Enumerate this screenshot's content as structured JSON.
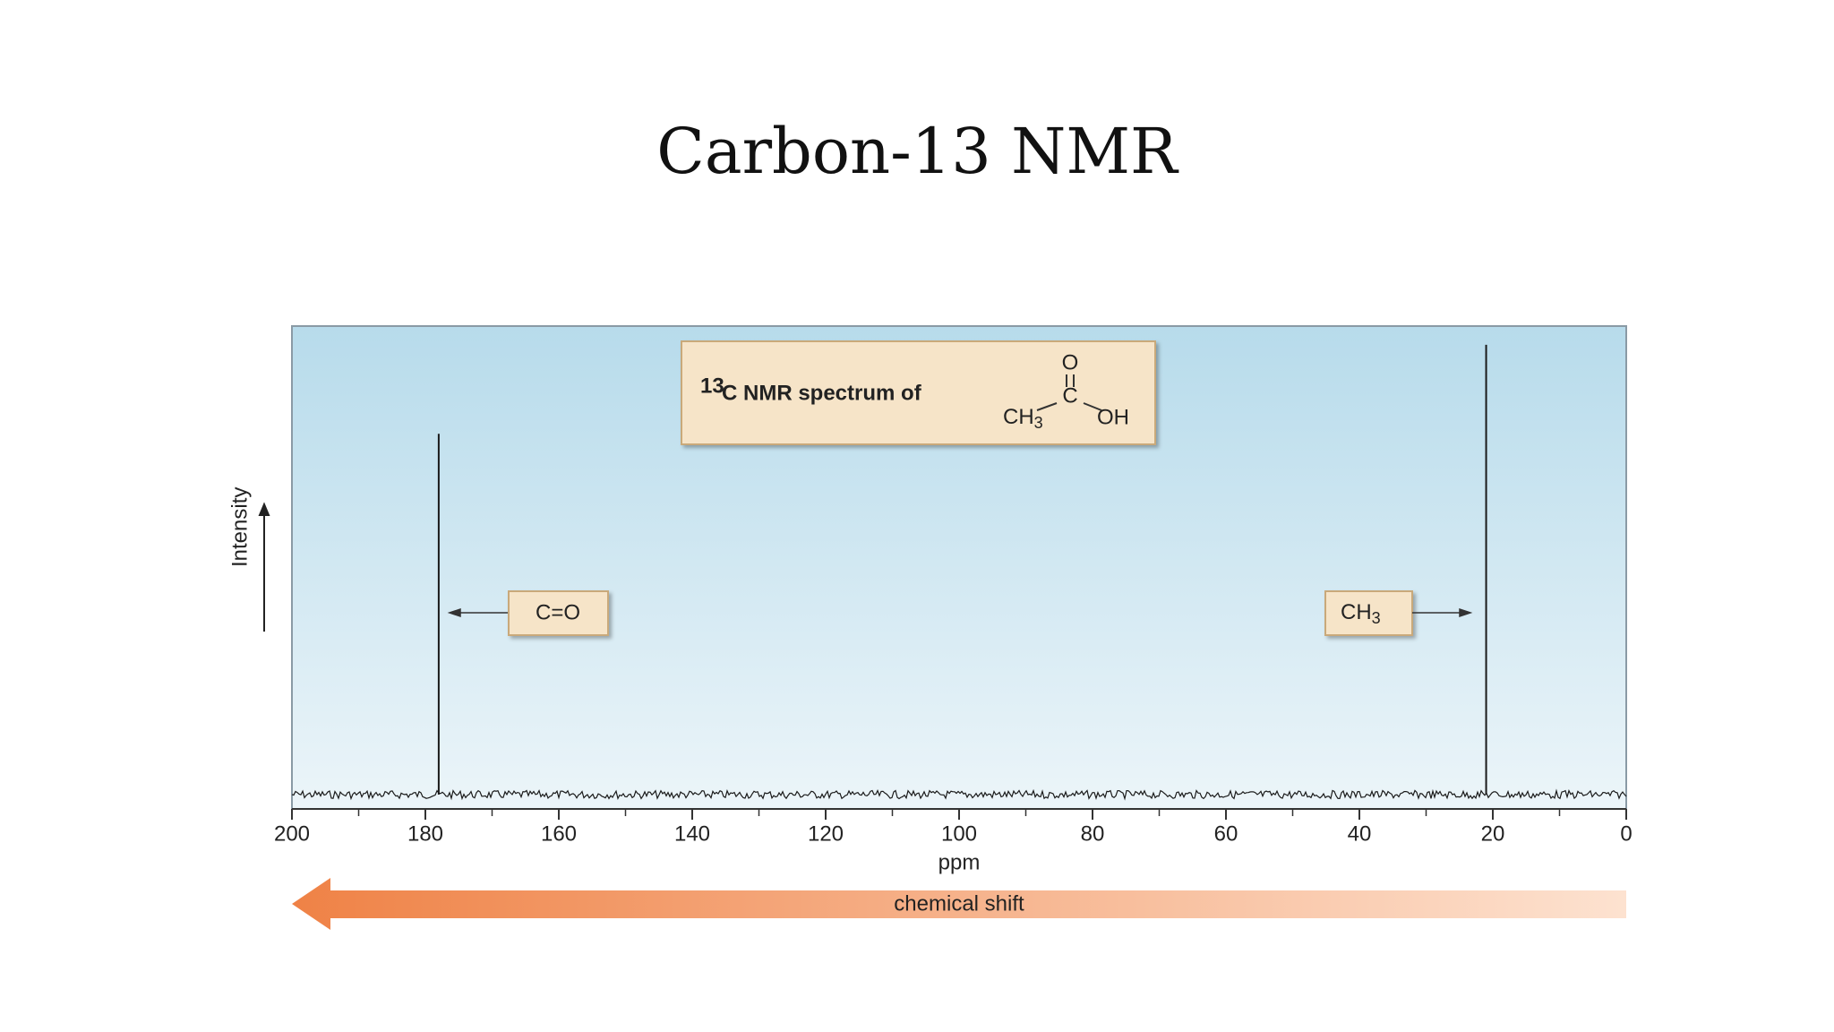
{
  "chart_data": {
    "type": "spectrum",
    "title": "Carbon-13 NMR",
    "inset": {
      "superscript": "13",
      "text": "C NMR spectrum of",
      "molecule": {
        "top": "O",
        "center": "C",
        "left": "CH",
        "left_sub": "3",
        "right": "OH"
      }
    },
    "x": [
      178,
      21
    ],
    "values": [
      0.77,
      0.96
    ],
    "annotations": [
      {
        "text": "C=O"
      },
      {
        "text": "CH",
        "sub": "3"
      }
    ],
    "xlim": [
      200,
      0
    ],
    "xticks": [
      200,
      180,
      160,
      140,
      120,
      100,
      80,
      60,
      40,
      20,
      0
    ],
    "minor_xticks": [
      190,
      170,
      150,
      130,
      110,
      90,
      70,
      50,
      30,
      10
    ],
    "ylim": [
      0,
      1
    ],
    "xlabel": "ppm",
    "ylabel": "Intensity",
    "arrow_label": "chemical shift",
    "color": "#1a1a1a"
  }
}
